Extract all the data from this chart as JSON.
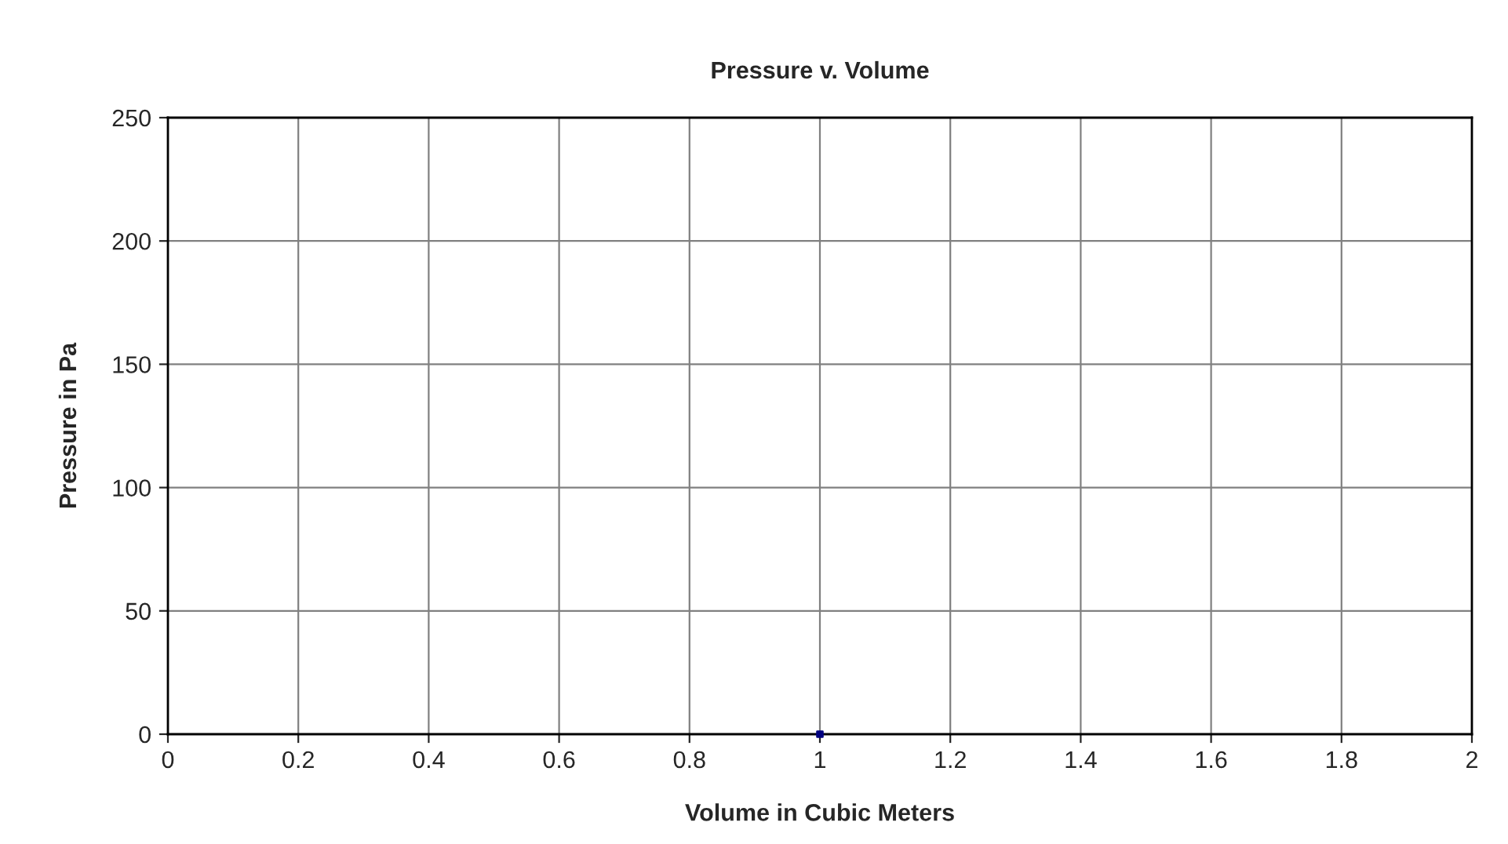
{
  "chart_data": {
    "type": "scatter",
    "title": "Pressure v. Volume",
    "xlabel": "Volume in Cubic Meters",
    "ylabel": "Pressure in Pa",
    "x": [
      1
    ],
    "values": [
      0
    ],
    "color": "#000080",
    "marker": "square",
    "xlim": [
      0,
      2
    ],
    "xticks": [
      0,
      0.2,
      0.4,
      0.6,
      0.8,
      1,
      1.2,
      1.4,
      1.6,
      1.8,
      2
    ],
    "ylim": [
      0,
      250
    ],
    "yticks": [
      0,
      50,
      100,
      150,
      200,
      250
    ],
    "grid": true
  }
}
